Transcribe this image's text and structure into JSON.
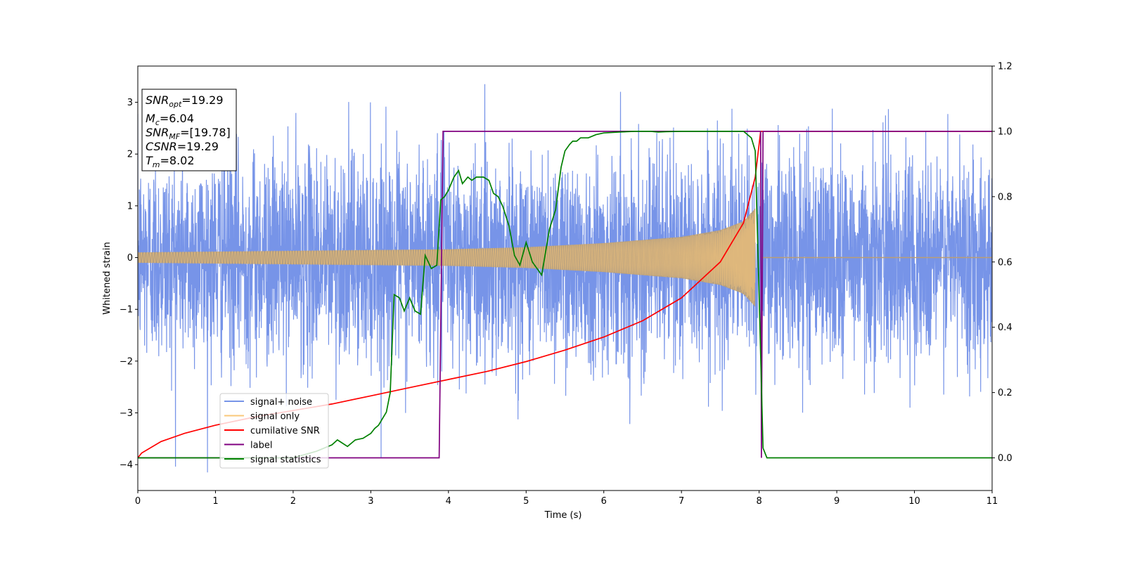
{
  "chart_data": {
    "type": "line",
    "xlabel": "Time (s)",
    "ylabel": "Whitened strain",
    "xlim": [
      0,
      11
    ],
    "ylim": [
      -4.5,
      3.7
    ],
    "y2lim": [
      -0.1,
      1.2
    ],
    "x_ticks": [
      "0",
      "1",
      "2",
      "3",
      "4",
      "5",
      "6",
      "7",
      "8",
      "9",
      "10",
      "11"
    ],
    "y_ticks": [
      "−4",
      "−3",
      "−2",
      "−1",
      "0",
      "1",
      "2",
      "3"
    ],
    "y2_ticks": [
      "0.0",
      "0.2",
      "0.4",
      "0.6",
      "0.8",
      "1.0",
      "1.2"
    ],
    "grid": false,
    "legend_placement": "lower-left",
    "colors": {
      "signal_noise": "#7794e8",
      "signal_only": "#fac87a",
      "overlap": "#ba9e75",
      "cumulative_snr": "#ff0000",
      "label": "#800080",
      "signal_statistics": "#008000"
    },
    "annotation": {
      "snr_opt_sym": "SNR",
      "snr_opt_sub": "opt",
      "snr_opt_val": "=19.29",
      "mc_sym": "M",
      "mc_sub": "c",
      "mc_val": "=6.04",
      "snr_mf_sym": "SNR",
      "snr_mf_sub": "MF",
      "snr_mf_val": "=[19.78]",
      "csnr_sym": "CSNR",
      "csnr_val": "=19.29",
      "tm_sym": "T",
      "tm_sub": "m",
      "tm_val": "=8.02"
    },
    "series": [
      {
        "name": "signal+ noise",
        "axis": "left",
        "description_values": {
          "x_range": [
            0,
            11
          ],
          "approx_sigma": 1.0,
          "approx_max": 3.35,
          "approx_min": -4.15
        }
      },
      {
        "name": "signal only",
        "axis": "left",
        "envelope": {
          "x": [
            0.0,
            2.0,
            4.0,
            5.0,
            6.0,
            7.0,
            7.5,
            7.8,
            7.95,
            8.02,
            11.0
          ],
          "amplitude": [
            0.1,
            0.13,
            0.16,
            0.2,
            0.28,
            0.4,
            0.53,
            0.7,
            0.95,
            0.0,
            0.0
          ]
        }
      },
      {
        "name": "cumilative SNR",
        "axis": "right",
        "x": [
          0.0,
          0.05,
          0.3,
          0.6,
          1.0,
          1.5,
          2.0,
          2.5,
          3.0,
          3.5,
          4.0,
          4.5,
          5.0,
          5.5,
          6.0,
          6.5,
          7.0,
          7.5,
          7.8,
          7.95,
          8.02,
          8.04,
          11.0
        ],
        "values": [
          0.0,
          0.015,
          0.05,
          0.075,
          0.1,
          0.125,
          0.145,
          0.165,
          0.19,
          0.215,
          0.24,
          0.265,
          0.295,
          0.33,
          0.37,
          0.42,
          0.49,
          0.6,
          0.72,
          0.86,
          1.0,
          1.0,
          1.0
        ]
      },
      {
        "name": "label",
        "axis": "right",
        "x": [
          0.0,
          3.88,
          3.93,
          8.02,
          8.03,
          8.05,
          11.0
        ],
        "values": [
          0.0,
          0.0,
          1.0,
          1.0,
          0.0,
          1.0,
          1.0
        ]
      },
      {
        "name": "signal statistics",
        "axis": "right",
        "x": [
          0.0,
          1.0,
          2.0,
          2.3,
          2.5,
          2.57,
          2.7,
          2.8,
          2.9,
          3.0,
          3.05,
          3.1,
          3.15,
          3.2,
          3.25,
          3.3,
          3.37,
          3.43,
          3.5,
          3.57,
          3.64,
          3.7,
          3.78,
          3.85,
          3.9,
          3.95,
          4.0,
          4.07,
          4.13,
          4.18,
          4.25,
          4.3,
          4.36,
          4.45,
          4.52,
          4.58,
          4.64,
          4.7,
          4.78,
          4.85,
          4.92,
          5.0,
          5.08,
          5.2,
          5.3,
          5.38,
          5.45,
          5.5,
          5.56,
          5.6,
          5.65,
          5.7,
          5.8,
          5.9,
          6.0,
          6.2,
          6.4,
          6.6,
          6.7,
          6.8,
          7.0,
          7.2,
          7.5,
          7.8,
          7.9,
          7.95,
          8.0,
          8.05,
          8.1,
          11.0
        ],
        "values": [
          0.0,
          0.0,
          0.0,
          0.02,
          0.04,
          0.055,
          0.035,
          0.055,
          0.06,
          0.075,
          0.09,
          0.1,
          0.12,
          0.14,
          0.2,
          0.5,
          0.49,
          0.45,
          0.49,
          0.45,
          0.44,
          0.62,
          0.58,
          0.59,
          0.79,
          0.8,
          0.82,
          0.86,
          0.88,
          0.84,
          0.86,
          0.85,
          0.86,
          0.86,
          0.85,
          0.81,
          0.8,
          0.77,
          0.71,
          0.62,
          0.59,
          0.66,
          0.6,
          0.56,
          0.7,
          0.76,
          0.89,
          0.94,
          0.96,
          0.97,
          0.97,
          0.98,
          0.98,
          0.99,
          0.995,
          0.998,
          1.0,
          1.0,
          0.998,
          0.999,
          1.0,
          1.0,
          1.0,
          1.0,
          0.98,
          0.94,
          0.5,
          0.03,
          0.0,
          0.0
        ]
      }
    ]
  }
}
